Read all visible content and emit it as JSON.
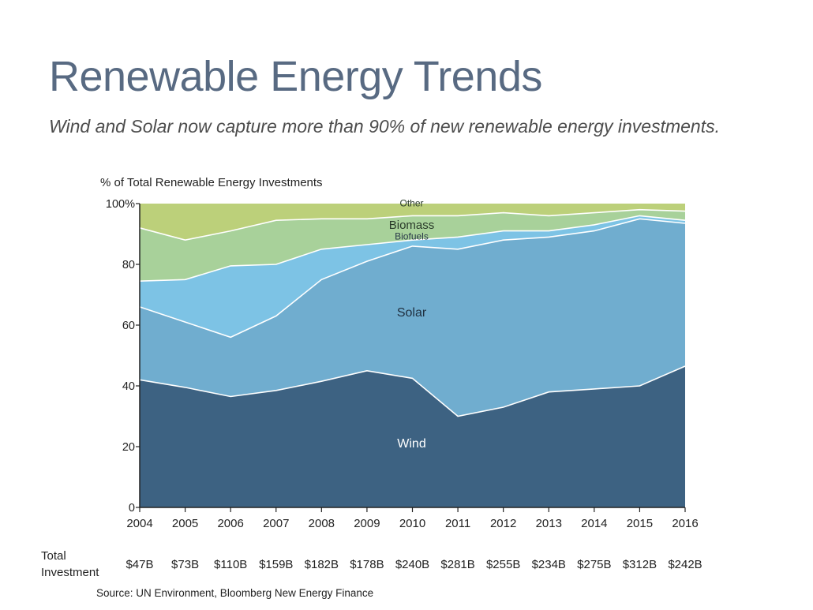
{
  "title": "Renewable Energy Trends",
  "subtitle": "Wind and Solar now capture more than 90% of new renewable energy investments.",
  "source": "Source: UN Environment, Bloomberg New Energy Finance",
  "chart_data": {
    "type": "area",
    "stacked": true,
    "ylabel": "% of Total Renewable Energy Investments",
    "ylim": [
      0,
      100
    ],
    "yticks": [
      "0",
      "20",
      "40",
      "60",
      "80",
      "100%"
    ],
    "x": [
      "2004",
      "2005",
      "2006",
      "2007",
      "2008",
      "2009",
      "2010",
      "2011",
      "2012",
      "2013",
      "2014",
      "2015",
      "2016"
    ],
    "series": [
      {
        "name": "Wind",
        "color": "#3d6282",
        "values": [
          42,
          39.5,
          36.5,
          38.5,
          41.5,
          45,
          42.5,
          30,
          33,
          38,
          39,
          40,
          46.5
        ]
      },
      {
        "name": "Solar",
        "color": "#70adcf",
        "values": [
          24,
          21.5,
          19.5,
          24.5,
          33.5,
          36,
          43.5,
          55,
          55,
          51,
          52,
          55,
          47
        ]
      },
      {
        "name": "Biofuels",
        "color": "#7dc3e5",
        "values": [
          8.5,
          14,
          23.5,
          17,
          10,
          5.5,
          2,
          4,
          3,
          2,
          2,
          1,
          1
        ]
      },
      {
        "name": "Biomass",
        "color": "#a8d19a",
        "values": [
          17.5,
          13,
          11.5,
          14.5,
          10,
          8.5,
          8,
          7,
          6,
          5,
          4,
          2,
          3
        ]
      },
      {
        "name": "Other",
        "color": "#bcd07a",
        "values": [
          8,
          12,
          9,
          5.5,
          5,
          5,
          4,
          4,
          3,
          4,
          3,
          2,
          2.5
        ]
      }
    ],
    "total_label": "Total Investment",
    "total_investment": [
      "$47B",
      "$73B",
      "$110B",
      "$159B",
      "$182B",
      "$178B",
      "$240B",
      "$281B",
      "$255B",
      "$234B",
      "$275B",
      "$312B",
      "$242B"
    ]
  }
}
